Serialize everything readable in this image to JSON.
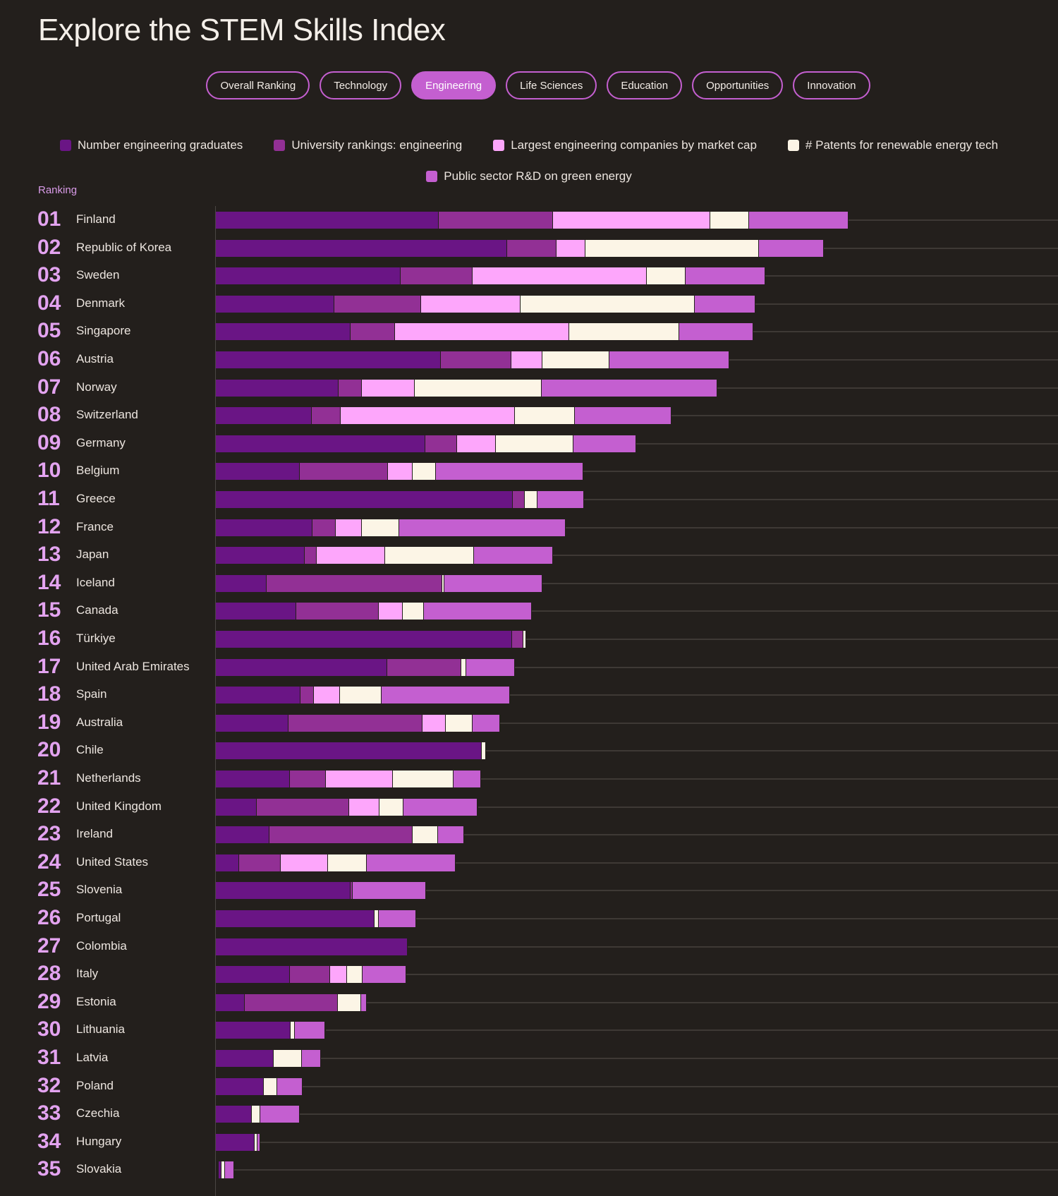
{
  "header": {
    "title": "Explore the STEM Skills Index"
  },
  "tabs": [
    {
      "label": "Overall Ranking",
      "active": false
    },
    {
      "label": "Technology",
      "active": false
    },
    {
      "label": "Engineering",
      "active": true
    },
    {
      "label": "Life Sciences",
      "active": false
    },
    {
      "label": "Education",
      "active": false
    },
    {
      "label": "Opportunities",
      "active": false
    },
    {
      "label": "Innovation",
      "active": false
    }
  ],
  "chart_data": {
    "type": "bar",
    "orientation": "horizontal",
    "stacked": true,
    "value_units": "relative (no scale printed)",
    "ranking_label": "Ranking",
    "legend_placement": "top",
    "grid": true,
    "series": [
      {
        "name": "Number engineering graduates",
        "color": "#6a1585"
      },
      {
        "name": "University rankings: engineering",
        "color": "#923095"
      },
      {
        "name": "Largest engineering companies by market cap",
        "color": "#fda6fb"
      },
      {
        "name": "# Patents for renewable energy tech",
        "color": "#fcf5e6"
      },
      {
        "name": "Public sector R&D on green energy",
        "color": "#c45fd0"
      }
    ],
    "rows": [
      {
        "rank": "01",
        "country": "Finland",
        "values": [
          29.3,
          15.0,
          20.6,
          5.1,
          13.1
        ]
      },
      {
        "rank": "02",
        "country": "Republic of Korea",
        "values": [
          38.2,
          6.5,
          3.8,
          22.8,
          8.5
        ]
      },
      {
        "rank": "03",
        "country": "Sweden",
        "values": [
          24.3,
          9.4,
          22.9,
          5.1,
          10.4
        ]
      },
      {
        "rank": "04",
        "country": "Denmark",
        "values": [
          15.6,
          11.3,
          13.1,
          22.9,
          7.9
        ]
      },
      {
        "rank": "05",
        "country": "Singapore",
        "values": [
          17.7,
          5.8,
          22.9,
          14.4,
          9.8
        ]
      },
      {
        "rank": "06",
        "country": "Austria",
        "values": [
          29.5,
          9.3,
          4.1,
          8.8,
          15.7
        ]
      },
      {
        "rank": "07",
        "country": "Norway",
        "values": [
          16.1,
          3.1,
          6.9,
          16.7,
          23.0
        ]
      },
      {
        "rank": "08",
        "country": "Switzerland",
        "values": [
          12.6,
          3.8,
          22.9,
          7.8,
          12.7
        ]
      },
      {
        "rank": "09",
        "country": "Germany",
        "values": [
          27.5,
          4.2,
          5.1,
          10.1,
          8.3
        ]
      },
      {
        "rank": "10",
        "country": "Belgium",
        "values": [
          11.0,
          11.6,
          3.2,
          3.1,
          19.3
        ]
      },
      {
        "rank": "11",
        "country": "Greece",
        "values": [
          39.0,
          1.6,
          0,
          1.6,
          6.1
        ]
      },
      {
        "rank": "12",
        "country": "France",
        "values": [
          12.7,
          3.0,
          3.5,
          4.9,
          21.8
        ]
      },
      {
        "rank": "13",
        "country": "Japan",
        "values": [
          11.7,
          1.5,
          9.0,
          11.7,
          10.4
        ]
      },
      {
        "rank": "14",
        "country": "Iceland",
        "values": [
          6.7,
          23.0,
          0,
          0.2,
          12.9
        ]
      },
      {
        "rank": "15",
        "country": "Canada",
        "values": [
          10.6,
          10.8,
          3.1,
          2.8,
          14.2
        ]
      },
      {
        "rank": "16",
        "country": "Türkiye",
        "values": [
          38.9,
          1.5,
          0,
          0.3,
          0
        ]
      },
      {
        "rank": "17",
        "country": "United Arab Emirates",
        "values": [
          22.5,
          9.7,
          0,
          0.7,
          6.4
        ]
      },
      {
        "rank": "18",
        "country": "Spain",
        "values": [
          11.1,
          1.8,
          3.4,
          5.5,
          16.8
        ]
      },
      {
        "rank": "19",
        "country": "Australia",
        "values": [
          9.5,
          17.6,
          3.1,
          3.5,
          3.6
        ]
      },
      {
        "rank": "20",
        "country": "Chile",
        "values": [
          34.9,
          0,
          0,
          0.6,
          0
        ]
      },
      {
        "rank": "21",
        "country": "Netherlands",
        "values": [
          9.7,
          4.7,
          8.8,
          8.0,
          3.6
        ]
      },
      {
        "rank": "22",
        "country": "United Kingdom",
        "values": [
          5.4,
          12.1,
          4.0,
          3.1,
          9.8
        ]
      },
      {
        "rank": "23",
        "country": "Ireland",
        "values": [
          7.0,
          18.8,
          0,
          3.4,
          3.4
        ]
      },
      {
        "rank": "24",
        "country": "United States",
        "values": [
          3.1,
          5.4,
          6.2,
          5.1,
          11.7
        ]
      },
      {
        "rank": "25",
        "country": "Slovenia",
        "values": [
          17.7,
          0.2,
          0,
          0,
          9.6
        ]
      },
      {
        "rank": "26",
        "country": "Portugal",
        "values": [
          20.8,
          0,
          0,
          0.6,
          4.9
        ]
      },
      {
        "rank": "27",
        "country": "Colombia",
        "values": [
          25.2,
          0,
          0,
          0,
          0
        ]
      },
      {
        "rank": "28",
        "country": "Italy",
        "values": [
          9.7,
          5.3,
          2.2,
          2.1,
          5.7
        ]
      },
      {
        "rank": "29",
        "country": "Estonia",
        "values": [
          3.8,
          12.2,
          0,
          3.1,
          0.7
        ]
      },
      {
        "rank": "30",
        "country": "Lithuania",
        "values": [
          9.8,
          0,
          0,
          0.6,
          4.0
        ]
      },
      {
        "rank": "31",
        "country": "Latvia",
        "values": [
          7.6,
          0,
          0,
          3.7,
          2.5
        ]
      },
      {
        "rank": "32",
        "country": "Poland",
        "values": [
          6.3,
          0,
          0,
          1.8,
          3.3
        ]
      },
      {
        "rank": "33",
        "country": "Czechia",
        "values": [
          4.7,
          0,
          0,
          1.1,
          5.2
        ]
      },
      {
        "rank": "34",
        "country": "Hungary",
        "values": [
          5.1,
          0,
          0,
          0.4,
          0.3
        ]
      },
      {
        "rank": "35",
        "country": "Slovakia",
        "values": [
          0.4,
          0,
          0,
          0.4,
          1.2
        ]
      }
    ]
  }
}
